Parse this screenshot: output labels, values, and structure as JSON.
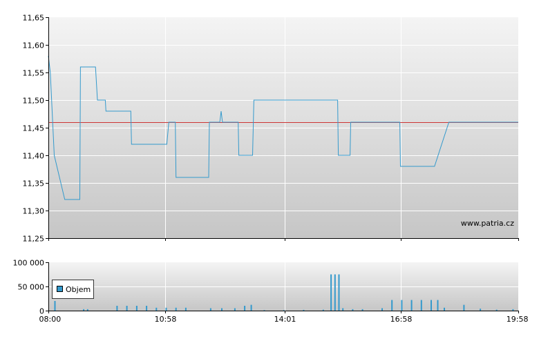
{
  "chart_data": [
    {
      "type": "line",
      "title": "",
      "xlabel": "",
      "ylabel": "",
      "ylim": [
        11.25,
        11.65
      ],
      "y_ticks": [
        "11,65",
        "11,60",
        "11,55",
        "11,50",
        "11,45",
        "11,40",
        "11,35",
        "11,30",
        "11,25"
      ],
      "x_ticks": [
        "08:00",
        "10:58",
        "14:01",
        "16:58",
        "19:58"
      ],
      "grid": true,
      "watermark": "www.patria.cz",
      "reference_line": {
        "value": 11.46,
        "color": "#cc3333"
      },
      "series": [
        {
          "color": "#3399cc",
          "points": [
            [
              "08:00",
              11.58
            ],
            [
              "08:03",
              11.55
            ],
            [
              "08:09",
              11.4
            ],
            [
              "08:25",
              11.32
            ],
            [
              "08:48",
              11.32
            ],
            [
              "08:49",
              11.56
            ],
            [
              "09:12",
              11.56
            ],
            [
              "09:15",
              11.5
            ],
            [
              "09:27",
              11.5
            ],
            [
              "09:28",
              11.48
            ],
            [
              "10:06",
              11.48
            ],
            [
              "10:07",
              11.42
            ],
            [
              "10:53",
              11.42
            ],
            [
              "11:01",
              11.42
            ],
            [
              "11:04",
              11.46
            ],
            [
              "11:14",
              11.46
            ],
            [
              "11:15",
              11.36
            ],
            [
              "12:05",
              11.36
            ],
            [
              "12:06",
              11.46
            ],
            [
              "12:22",
              11.46
            ],
            [
              "12:24",
              11.48
            ],
            [
              "12:26",
              11.46
            ],
            [
              "12:50",
              11.46
            ],
            [
              "12:51",
              11.4
            ],
            [
              "13:12",
              11.4
            ],
            [
              "13:14",
              11.5
            ],
            [
              "15:22",
              11.5
            ],
            [
              "15:23",
              11.4
            ],
            [
              "15:41",
              11.4
            ],
            [
              "15:42",
              11.46
            ],
            [
              "16:57",
              11.46
            ],
            [
              "16:58",
              11.38
            ],
            [
              "17:50",
              11.38
            ],
            [
              "18:12",
              11.46
            ],
            [
              "19:58",
              11.46
            ]
          ]
        }
      ]
    },
    {
      "type": "bar",
      "title": "",
      "xlabel": "",
      "ylabel": "",
      "ylim": [
        0,
        100000
      ],
      "y_ticks": [
        "100 000",
        "50 000",
        "0"
      ],
      "x_ticks": [
        "08:00",
        "10:58",
        "14:01",
        "16:58",
        "19:58"
      ],
      "legend": {
        "position": "left",
        "entries": [
          "Objem"
        ]
      },
      "series": [
        {
          "name": "Objem",
          "color": "#3399cc",
          "points": [
            [
              "08:10",
              20000
            ],
            [
              "08:54",
              3000
            ],
            [
              "09:00",
              3000
            ],
            [
              "09:45",
              10000
            ],
            [
              "10:00",
              10000
            ],
            [
              "10:15",
              10000
            ],
            [
              "10:30",
              10000
            ],
            [
              "10:45",
              6000
            ],
            [
              "11:00",
              6000
            ],
            [
              "11:15",
              6000
            ],
            [
              "11:30",
              6000
            ],
            [
              "12:08",
              5000
            ],
            [
              "12:25",
              5000
            ],
            [
              "12:45",
              5000
            ],
            [
              "13:00",
              10000
            ],
            [
              "13:10",
              12000
            ],
            [
              "13:30",
              1000
            ],
            [
              "14:00",
              1000
            ],
            [
              "14:30",
              1500
            ],
            [
              "15:00",
              2000
            ],
            [
              "15:12",
              75000
            ],
            [
              "15:18",
              75000
            ],
            [
              "15:24",
              75000
            ],
            [
              "15:30",
              5000
            ],
            [
              "15:45",
              3000
            ],
            [
              "16:00",
              3000
            ],
            [
              "16:30",
              5000
            ],
            [
              "16:45",
              22000
            ],
            [
              "17:00",
              22000
            ],
            [
              "17:15",
              22000
            ],
            [
              "17:30",
              22000
            ],
            [
              "17:45",
              22000
            ],
            [
              "17:55",
              22000
            ],
            [
              "18:05",
              6000
            ],
            [
              "18:35",
              12000
            ],
            [
              "19:00",
              4000
            ],
            [
              "19:25",
              2000
            ],
            [
              "19:50",
              3000
            ]
          ]
        }
      ]
    }
  ]
}
